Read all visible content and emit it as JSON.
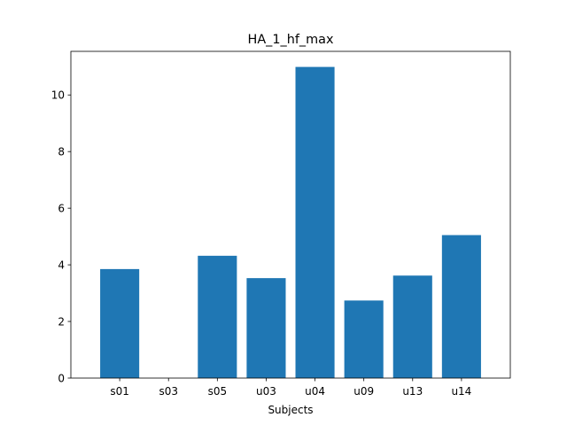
{
  "chart_data": {
    "type": "bar",
    "title": "HA_1_hf_max",
    "xlabel": "Subjects",
    "ylabel": "",
    "categories": [
      "s01",
      "s03",
      "s05",
      "u03",
      "u04",
      "u09",
      "u13",
      "u14"
    ],
    "values": [
      3.85,
      0.0,
      4.32,
      3.53,
      10.99,
      2.74,
      3.62,
      5.05
    ],
    "ylim": [
      0,
      11.54
    ],
    "yticks": [
      0,
      2,
      4,
      6,
      8,
      10
    ],
    "grid": false,
    "bar_color": "#1f77b4"
  }
}
